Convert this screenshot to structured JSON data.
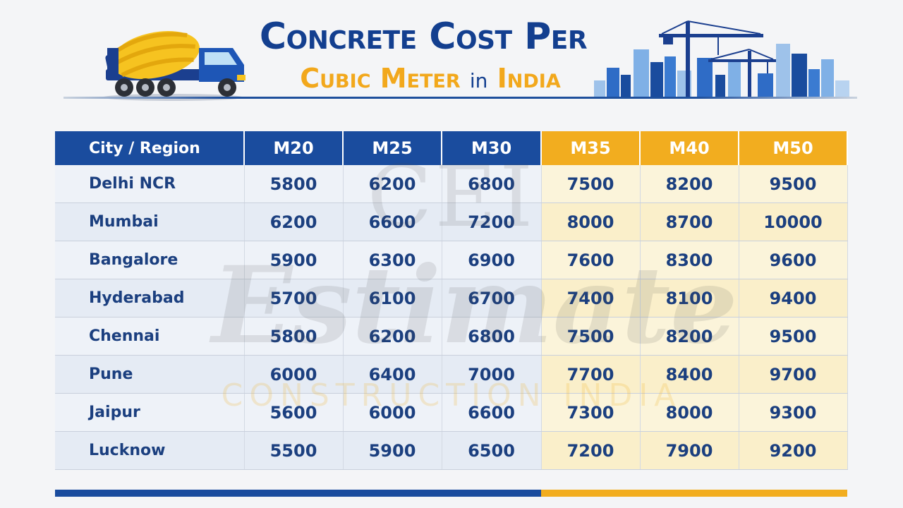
{
  "header": {
    "title_line1": "Concrete Cost Per",
    "title_line2_a": "Cubic Meter",
    "title_line2_b": "in",
    "title_line2_c": "India"
  },
  "colors": {
    "navy": "#1a4c9e",
    "gold": "#f2ad1f",
    "text_dark": "#1b3f7f"
  },
  "table": {
    "headers": [
      "City / Region",
      "M20",
      "M25",
      "M30",
      "M35",
      "M40",
      "M50"
    ],
    "rows": [
      [
        "Delhi NCR",
        "5800",
        "6200",
        "6800",
        "7500",
        "8200",
        "9500"
      ],
      [
        "Mumbai",
        "6200",
        "6600",
        "7200",
        "8000",
        "8700",
        "10000"
      ],
      [
        "Bangalore",
        "5900",
        "6300",
        "6900",
        "7600",
        "8300",
        "9600"
      ],
      [
        "Hyderabad",
        "5700",
        "6100",
        "6700",
        "7400",
        "8100",
        "9400"
      ],
      [
        "Chennai",
        "5800",
        "6200",
        "6800",
        "7500",
        "8200",
        "9500"
      ],
      [
        "Pune",
        "6000",
        "6400",
        "7000",
        "7700",
        "8400",
        "9700"
      ],
      [
        "Jaipur",
        "5600",
        "6000",
        "6600",
        "7300",
        "8000",
        "9300"
      ],
      [
        "Lucknow",
        "5500",
        "5900",
        "6500",
        "7200",
        "7900",
        "9200"
      ]
    ]
  },
  "watermark": {
    "logo": "CEI",
    "brand": "Estimate",
    "tagline": "CONSTRUCTION INDIA"
  }
}
